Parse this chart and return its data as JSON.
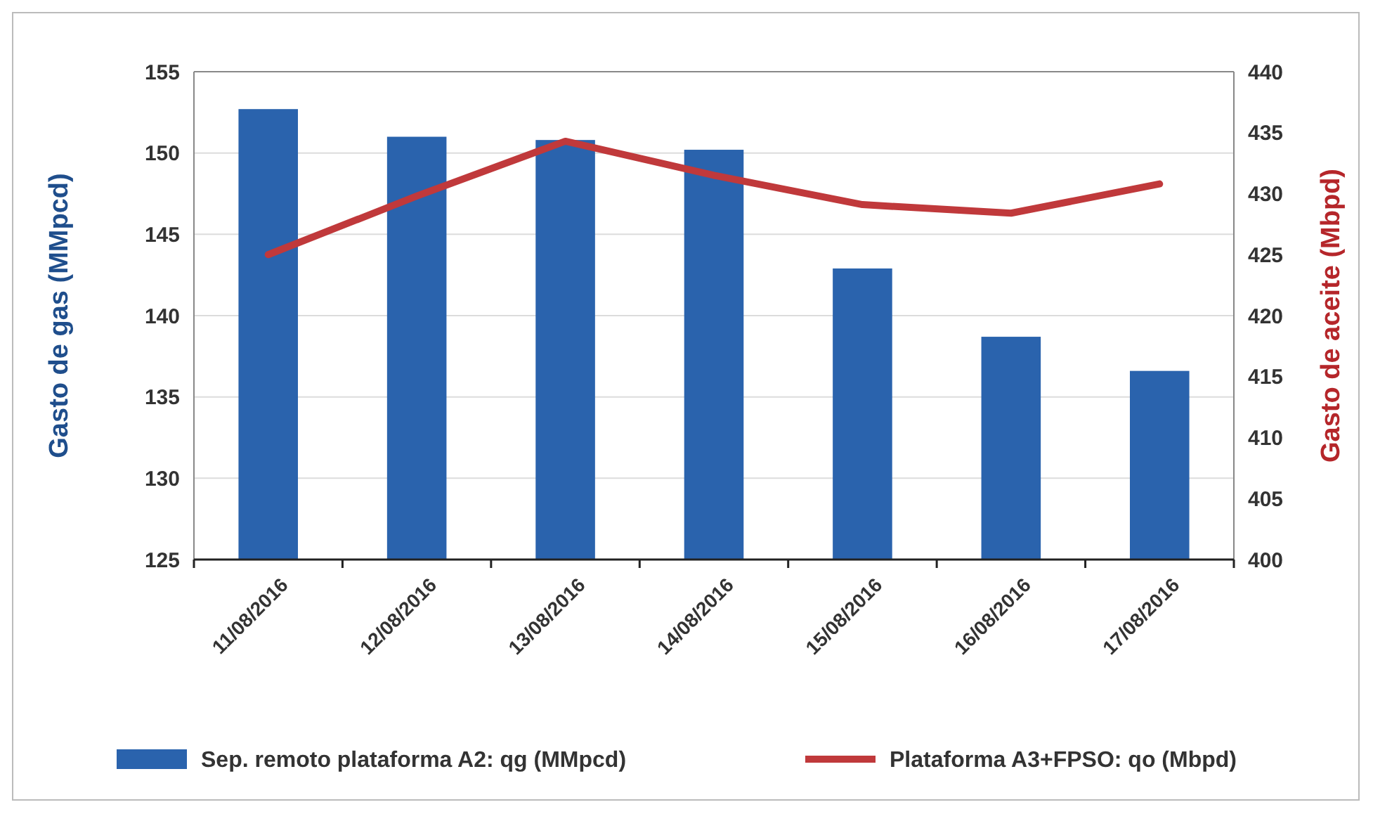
{
  "chart_data": {
    "type": "bar",
    "categories": [
      "11/08/2016",
      "12/08/2016",
      "13/08/2016",
      "14/08/2016",
      "15/08/2016",
      "16/08/2016",
      "17/08/2016"
    ],
    "ylabel": "Gasto de gas (MMpcd)",
    "y2label": "Gasto de aceite (Mbpd)",
    "ylim": [
      125,
      155
    ],
    "yticks": [
      125,
      130,
      135,
      140,
      145,
      150,
      155
    ],
    "y2lim": [
      400,
      440
    ],
    "y2ticks": [
      400,
      405,
      410,
      415,
      420,
      425,
      430,
      435,
      440
    ],
    "grid": "y",
    "legend": "bottom",
    "series": [
      {
        "name": "Sep. remoto plataforma A2: qg (MMpcd)",
        "color": "#2a63ad",
        "values": [
          152.7,
          151.0,
          150.8,
          150.2,
          142.9,
          138.7,
          136.6
        ]
      },
      {
        "name": "Plataforma A3+FPSO: qo (Mbpd)",
        "type": "line",
        "axis": "y2",
        "color": "#c0393b",
        "values": [
          425.0,
          429.8,
          434.3,
          431.5,
          429.1,
          428.4,
          430.8
        ]
      }
    ]
  }
}
